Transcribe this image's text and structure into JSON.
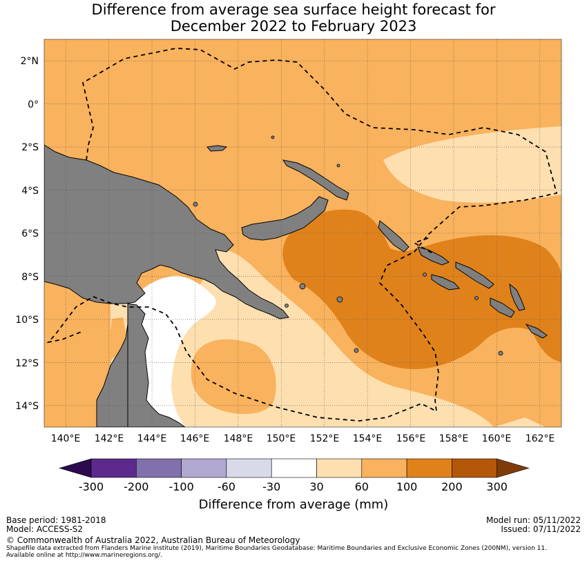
{
  "title": {
    "line1": "Difference from average sea surface height forecast for",
    "line2": "December 2022 to February 2023"
  },
  "map": {
    "lat_labels": [
      "2°N",
      "0°",
      "2°S",
      "4°S",
      "6°S",
      "8°S",
      "10°S",
      "12°S",
      "14°S"
    ],
    "lon_labels": [
      "140°E",
      "142°E",
      "144°E",
      "146°E",
      "148°E",
      "150°E",
      "152°E",
      "154°E",
      "156°E",
      "158°E",
      "160°E",
      "162°E"
    ],
    "lon_range": [
      139,
      163
    ],
    "lat_range": [
      -15,
      3
    ],
    "land_color": "#808080",
    "gridlines": true
  },
  "colorbar": {
    "title": "Difference from average (mm)",
    "tick_labels": [
      "-300",
      "-200",
      "-100",
      "-60",
      "-30",
      "30",
      "60",
      "100",
      "200",
      "300"
    ],
    "colors": [
      "#2d0a4e",
      "#5b2a8c",
      "#8070ab",
      "#b0a8d1",
      "#d9dae9",
      "#ffffff",
      "#fddfb0",
      "#f9b25d",
      "#e0821b",
      "#b35709",
      "#7f3b08"
    ]
  },
  "footer": {
    "base_period": "Base period: 1981-2018",
    "model": "Model: ACCESS-S2",
    "model_run": "Model run: 05/11/2022",
    "issued": "Issued: 07/11/2022",
    "copyright": "© Commonwealth of Australia 2022, Australian Bureau of Meteorology",
    "shapefile_line1": "Shapefile data extracted from Flanders Marine Institute (2019), Maritime Boundaries Geodatabase: Maritime Boundaries and Exclusive Economic Zones (200NM), version 11.",
    "shapefile_line2": "Available online at http://www.marineregions.org/."
  }
}
